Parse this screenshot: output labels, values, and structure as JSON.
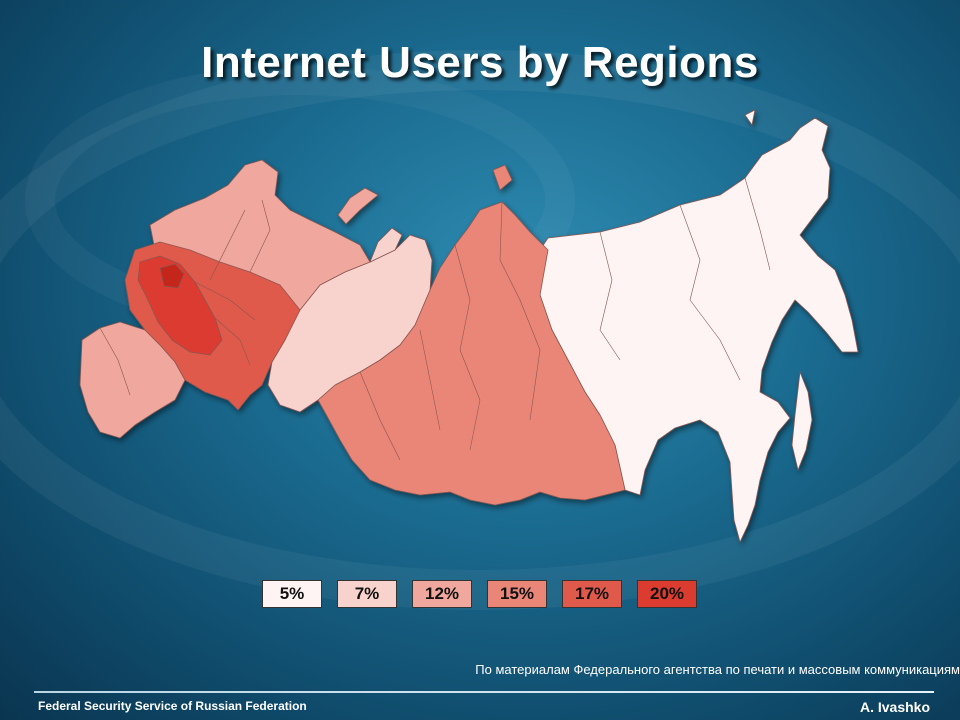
{
  "title": "Internet Users by Regions",
  "legend": [
    {
      "label": "5%",
      "color": "#fdf4f3"
    },
    {
      "label": "7%",
      "color": "#f8d3ce"
    },
    {
      "label": "12%",
      "color": "#f0a89e"
    },
    {
      "label": "15%",
      "color": "#ea8677"
    },
    {
      "label": "17%",
      "color": "#e05a4c"
    },
    {
      "label": "20%",
      "color": "#dc3b30"
    }
  ],
  "source_note": "По материалам Федерального агентства по печати и массовым коммуникациям",
  "footer": {
    "left": "Federal Security Service of Russian Federation",
    "right": "A. Ivashko"
  }
}
